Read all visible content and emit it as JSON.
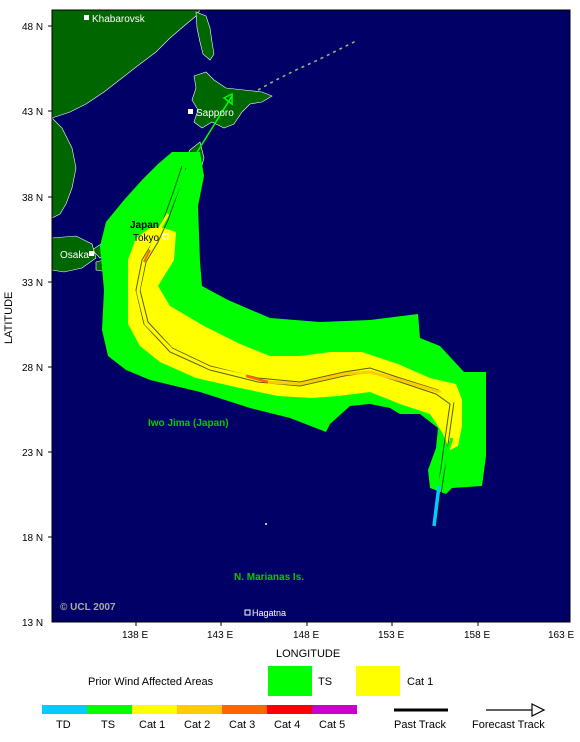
{
  "axes": {
    "y_title": "LATITUDE",
    "x_title": "LONGITUDE",
    "lat_ticks": [
      "48 N",
      "43 N",
      "38 N",
      "33 N",
      "28 N",
      "23 N",
      "18 N",
      "13 N"
    ],
    "lon_ticks": [
      "138 E",
      "143 E",
      "148 E",
      "153 E",
      "158 E",
      "163 E"
    ]
  },
  "places": {
    "khabarovsk": "Khabarovsk",
    "sapporo": "Sapporo",
    "japan": "Japan",
    "tokyo": "Tokyo",
    "osaka": "Osaka",
    "iwo_jima": "Iwo Jima (Japan)",
    "marianas": "N. Marianas Is.",
    "hagatna": "Hagatna"
  },
  "copyright": "© UCL 2007",
  "legend": {
    "prior_title": "Prior Wind Affected Areas",
    "prior": [
      {
        "label": "TS",
        "color": "#00ff00"
      },
      {
        "label": "Cat 1",
        "color": "#ffff00"
      }
    ],
    "categories": [
      {
        "label": "TD",
        "color": "#00ccff"
      },
      {
        "label": "TS",
        "color": "#00ff00"
      },
      {
        "label": "Cat 1",
        "color": "#ffff00"
      },
      {
        "label": "Cat 2",
        "color": "#ffcc00"
      },
      {
        "label": "Cat 3",
        "color": "#ff6600"
      },
      {
        "label": "Cat 4",
        "color": "#ff0000"
      },
      {
        "label": "Cat 5",
        "color": "#cc00cc"
      }
    ],
    "past_track": "Past Track",
    "forecast_track": "Forecast Track"
  },
  "colors": {
    "ocean": "#000066",
    "land": "#006600",
    "ts_zone": "#00ff00",
    "cat1_zone": "#ffff00",
    "forecast": "#00ff00",
    "label_green": "#00cc00"
  }
}
